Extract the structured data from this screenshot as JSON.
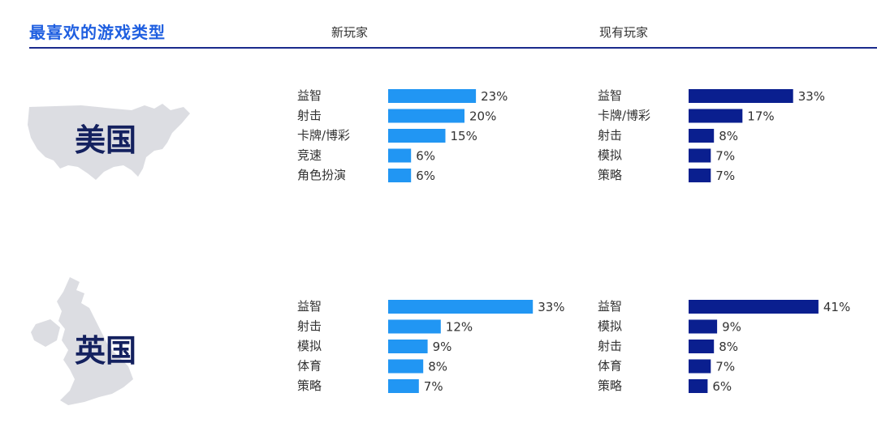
{
  "title": "最喜欢的游戏类型",
  "columns": {
    "new": "新玩家",
    "existing": "现有玩家"
  },
  "colors": {
    "new": "#2196f3",
    "existing": "#0a1f8f",
    "map": "#dcdde2"
  },
  "chart_data": [
    {
      "type": "bar",
      "country": "美国",
      "group": "新玩家",
      "categories": [
        "益智",
        "射击",
        "卡牌/博彩",
        "竞速",
        "角色扮演"
      ],
      "values": [
        23,
        20,
        15,
        6,
        6
      ],
      "unit": "%"
    },
    {
      "type": "bar",
      "country": "美国",
      "group": "现有玩家",
      "categories": [
        "益智",
        "卡牌/博彩",
        "射击",
        "模拟",
        "策略"
      ],
      "values": [
        33,
        17,
        8,
        7,
        7
      ],
      "unit": "%"
    },
    {
      "type": "bar",
      "country": "英国",
      "group": "新玩家",
      "categories": [
        "益智",
        "射击",
        "模拟",
        "体育",
        "策略"
      ],
      "values": [
        33,
        12,
        9,
        8,
        7
      ],
      "unit": "%"
    },
    {
      "type": "bar",
      "country": "英国",
      "group": "现有玩家",
      "categories": [
        "益智",
        "模拟",
        "射击",
        "体育",
        "策略"
      ],
      "values": [
        41,
        9,
        8,
        7,
        6
      ],
      "unit": "%"
    }
  ]
}
